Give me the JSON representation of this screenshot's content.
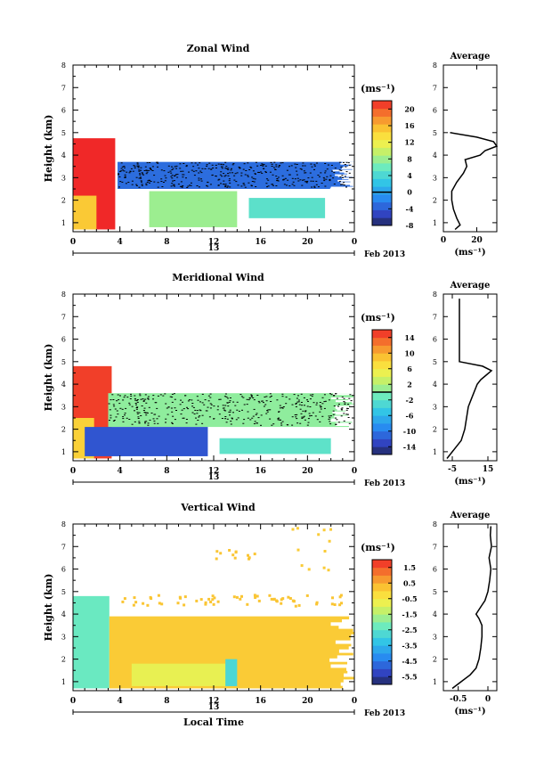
{
  "figure": {
    "x_axis_label": "Local Time",
    "date_label": "Feb 2013",
    "day_label": "13",
    "unit_label": "(ms⁻¹)",
    "avg_unit_label": "(ms⁻¹)"
  },
  "chart_data": [
    {
      "type": "heatmap",
      "title": "Zonal Wind",
      "ylabel": "Height (km)",
      "xlabel": "",
      "x_ticks": [
        "0",
        "4",
        "8",
        "12",
        "16",
        "20",
        "0"
      ],
      "x_range_hours": [
        0,
        24
      ],
      "ylim": [
        0.6,
        8
      ],
      "y_ticks": [
        1,
        2,
        3,
        4,
        5,
        6,
        7,
        8
      ],
      "colorbar": {
        "min": -8,
        "max": 22,
        "tick_values": [
          -8,
          -4,
          0,
          4,
          8,
          12,
          16,
          20
        ],
        "tick_labels": [
          "-8",
          "-4",
          "0",
          "4",
          "8",
          "12",
          "16",
          "20"
        ],
        "marked_line": 0
      },
      "regions": [
        {
          "t0": 0,
          "t1": 3.6,
          "h0": 0.7,
          "h1": 4.75,
          "value": 22
        },
        {
          "t0": 0,
          "t1": 2.0,
          "h0": 0.7,
          "h1": 2.2,
          "value": 15
        },
        {
          "t0": 3.8,
          "t1": 24,
          "h0": 2.5,
          "h1": 3.7,
          "value": -3,
          "stippled": true,
          "ragged_right": true
        },
        {
          "t0": 6.5,
          "t1": 14.0,
          "h0": 0.8,
          "h1": 2.4,
          "value": 8
        },
        {
          "t0": 15.0,
          "t1": 21.5,
          "h0": 1.2,
          "h1": 2.1,
          "value": 5
        }
      ],
      "average_profile": {
        "title": "Average",
        "xlim": [
          0,
          32
        ],
        "x_ticks": [
          0,
          20
        ],
        "heights": [
          0.7,
          0.9,
          1.2,
          1.6,
          2.0,
          2.4,
          2.8,
          3.2,
          3.5,
          3.8,
          4.0,
          4.2,
          4.4,
          4.6,
          4.8,
          5.0
        ],
        "values": [
          7,
          10,
          8,
          6,
          5,
          5,
          8,
          12,
          14,
          13,
          22,
          25,
          32,
          30,
          20,
          4
        ]
      }
    },
    {
      "type": "heatmap",
      "title": "Meridional Wind",
      "ylabel": "Height (km)",
      "xlabel": "",
      "x_ticks": [
        "0",
        "4",
        "8",
        "12",
        "16",
        "20",
        "0"
      ],
      "x_range_hours": [
        0,
        24
      ],
      "ylim": [
        0.6,
        8
      ],
      "y_ticks": [
        1,
        2,
        3,
        4,
        5,
        6,
        7,
        8
      ],
      "colorbar": {
        "min": -16,
        "max": 16,
        "tick_values": [
          -14,
          -10,
          -6,
          -2,
          2,
          6,
          10,
          14
        ],
        "tick_labels": [
          "-14",
          "-10",
          "-6",
          "-2",
          "2",
          "6",
          "10",
          "14"
        ],
        "marked_line": 0
      },
      "regions": [
        {
          "t0": 0,
          "t1": 3.3,
          "h0": 0.7,
          "h1": 4.8,
          "value": 15
        },
        {
          "t0": 0,
          "t1": 1.8,
          "h0": 0.7,
          "h1": 2.5,
          "value": 8
        },
        {
          "t0": 3.0,
          "t1": 24,
          "h0": 2.1,
          "h1": 3.6,
          "value": 0.5,
          "stippled": true,
          "ragged_right": true
        },
        {
          "t0": 1.0,
          "t1": 11.5,
          "h0": 0.8,
          "h1": 2.1,
          "value": -12
        },
        {
          "t0": 12.5,
          "t1": 22.0,
          "h0": 0.9,
          "h1": 1.6,
          "value": -2
        }
      ],
      "average_profile": {
        "title": "Average",
        "xlim": [
          -10,
          20
        ],
        "x_ticks": [
          -5,
          15
        ],
        "heights": [
          0.7,
          1.0,
          1.5,
          2.0,
          2.5,
          3.0,
          3.4,
          3.8,
          4.0,
          4.2,
          4.4,
          4.6,
          4.8,
          5.0,
          5.5,
          6.0,
          6.5,
          7.0,
          7.5,
          7.8
        ],
        "values": [
          -8,
          -5,
          0,
          2,
          3,
          4,
          6,
          8,
          9,
          11,
          14,
          17,
          12,
          -1,
          -1,
          -1,
          -1,
          -1,
          -1,
          -1
        ]
      }
    },
    {
      "type": "heatmap",
      "title": "Vertical Wind",
      "ylabel": "Height (km)",
      "xlabel": "Local Time",
      "x_ticks": [
        "0",
        "4",
        "8",
        "12",
        "16",
        "20",
        "0"
      ],
      "x_range_hours": [
        0,
        24
      ],
      "ylim": [
        0.6,
        8
      ],
      "y_ticks": [
        1,
        2,
        3,
        4,
        5,
        6,
        7,
        8
      ],
      "colorbar": {
        "min": -6,
        "max": 2,
        "tick_values": [
          -5.5,
          -4.5,
          -3.5,
          -2.5,
          -1.5,
          -0.5,
          0.5,
          1.5
        ],
        "tick_labels": [
          "-5.5",
          "-4.5",
          "-3.5",
          "-2.5",
          "-1.5",
          "-0.5",
          "0.5",
          "1.5"
        ]
      },
      "regions": [
        {
          "t0": 0,
          "t1": 3.1,
          "h0": 0.7,
          "h1": 4.8,
          "value": -2.3
        },
        {
          "t0": 3.1,
          "t1": 24,
          "h0": 0.7,
          "h1": 3.9,
          "value": 0.1,
          "ragged_right": true
        },
        {
          "t0": 5.0,
          "t1": 13.0,
          "h0": 0.8,
          "h1": 1.8,
          "value": -0.8
        },
        {
          "t0": 13.0,
          "t1": 14.0,
          "h0": 0.8,
          "h1": 2.0,
          "value": -2.8
        },
        {
          "t0": 4.0,
          "t1": 23.0,
          "h0": 4.4,
          "h1": 4.9,
          "value": 0.2,
          "sparse": true
        },
        {
          "t0": 12.0,
          "t1": 15.5,
          "h0": 6.5,
          "h1": 6.9,
          "value": 0.2,
          "sparse": true
        },
        {
          "t0": 18.5,
          "t1": 22.0,
          "h0": 6.0,
          "h1": 7.9,
          "value": 0.1,
          "sparse": true
        }
      ],
      "average_profile": {
        "title": "Average",
        "xlim": [
          -0.75,
          0.15
        ],
        "x_ticks": [
          -0.5,
          0.0
        ],
        "heights": [
          0.7,
          1.0,
          1.3,
          1.6,
          2.0,
          2.5,
          3.0,
          3.5,
          3.8,
          4.0,
          4.2,
          4.4,
          4.6,
          5.0,
          5.5,
          6.0,
          6.5,
          7.0,
          7.5,
          7.9
        ],
        "values": [
          -0.6,
          -0.45,
          -0.3,
          -0.2,
          -0.15,
          -0.12,
          -0.1,
          -0.1,
          -0.15,
          -0.2,
          -0.15,
          -0.1,
          -0.05,
          0.0,
          0.03,
          0.05,
          0.02,
          0.06,
          0.04,
          0.05
        ]
      }
    }
  ]
}
